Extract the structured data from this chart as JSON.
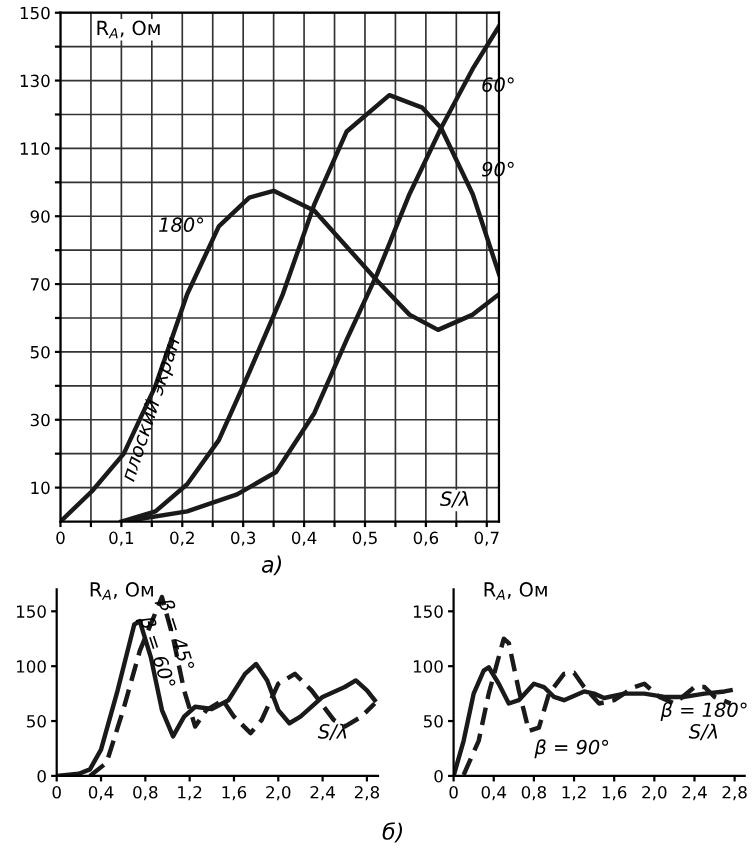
{
  "chart_data": [
    {
      "type": "line",
      "xlabel": "S/λ",
      "ylabel": "R$_{A}$, Ом",
      "xlim": [
        0,
        0.72
      ],
      "ylim": [
        0,
        150
      ],
      "xticks": [
        0,
        {
          "value": 0.05,
          "label": null
        },
        {
          "value": 0.1,
          "label": "0,1"
        },
        {
          "value": 0.15,
          "label": null
        },
        {
          "value": 0.2,
          "label": "0,2"
        },
        {
          "value": 0.25,
          "label": null
        },
        {
          "value": 0.3,
          "label": "0,3"
        },
        {
          "value": 0.35,
          "label": null
        },
        {
          "value": 0.4,
          "label": "0,4"
        },
        {
          "value": 0.45,
          "label": null
        },
        {
          "value": 0.5,
          "label": "0,5"
        },
        {
          "value": 0.55,
          "label": null
        },
        {
          "value": 0.6,
          "label": "0,6"
        },
        {
          "value": 0.65,
          "label": null
        },
        {
          "value": 0.7,
          "label": "0,7"
        }
      ],
      "yticks": [
        10,
        {
          "value": 20,
          "label": null
        },
        30,
        {
          "value": 40,
          "label": null
        },
        50,
        {
          "value": 60,
          "label": null
        },
        70,
        {
          "value": 80,
          "label": null
        },
        90,
        {
          "value": 100,
          "label": null
        },
        110,
        {
          "value": 120,
          "label": null
        },
        130,
        {
          "value": 140,
          "label": null
        },
        150
      ],
      "grid": true,
      "line_style": "solid",
      "series": [
        {
          "color": "#1a1a1a",
          "x": [
            0,
            0.052,
            0.104,
            0.156,
            0.208,
            0.26,
            0.31,
            0.35,
            0.417,
            0.47,
            0.52,
            0.573,
            0.62,
            0.677,
            0.72
          ],
          "values": [
            0,
            9,
            20,
            40,
            67,
            87,
            95.5,
            97.5,
            91.6,
            81,
            71,
            61,
            56.5,
            61,
            67
          ]
        },
        {
          "color": "#1a1a1a",
          "x": [
            0.1,
            0.156,
            0.208,
            0.26,
            0.31,
            0.365,
            0.417,
            0.47,
            0.54,
            0.594,
            0.625,
            0.677,
            0.72
          ],
          "values": [
            0,
            3,
            11,
            24,
            44,
            67,
            93.6,
            115,
            125.7,
            122,
            116,
            96.5,
            73
          ]
        },
        {
          "color": "#1a1a1a",
          "x": [
            0.104,
            0.208,
            0.29,
            0.354,
            0.417,
            0.47,
            0.52,
            0.573,
            0.625,
            0.677,
            0.72
          ],
          "values": [
            0,
            3,
            8,
            14.6,
            32,
            53.6,
            73,
            96.5,
            116,
            133.5,
            146
          ]
        }
      ],
      "annotations": [
        {
          "text": "плоский экран",
          "x": 0.15,
          "y": 33
        },
        {
          "text": "180°",
          "x": 0.26,
          "y": 87
        },
        {
          "text": "90°",
          "x": 0.677,
          "y": 96.5
        },
        {
          "text": "60°",
          "x": 0.677,
          "y": 133.5
        },
        "а)"
      ]
    },
    {
      "type": "line",
      "xlabel": "S/λ",
      "ylabel": "R$_{A}$, Ом",
      "xlim": [
        0,
        2.9
      ],
      "ylim": [
        0,
        170
      ],
      "xticks": [
        0,
        {
          "value": 0.4,
          "label": "0,4"
        },
        {
          "value": 0.8,
          "label": "0,8"
        },
        {
          "value": 1.2,
          "label": "1,2"
        },
        {
          "value": 1.6,
          "label": "1,6"
        },
        {
          "value": 2.0,
          "label": "2,0"
        },
        {
          "value": 2.4,
          "label": "2,4"
        },
        {
          "value": 2.8,
          "label": "2,8"
        }
      ],
      "yticks": [
        0,
        50,
        100,
        150
      ],
      "series": [
        {
          "color": "#1a1a1a",
          "line_style": "solid",
          "x": [
            0,
            0.2,
            0.3,
            0.4,
            0.55,
            0.7,
            0.75,
            0.85,
            0.95,
            1.05,
            1.15,
            1.25,
            1.4,
            1.55,
            1.7,
            1.8,
            1.9,
            2.0,
            2.1,
            2.2,
            2.4,
            2.6,
            2.7,
            2.8,
            2.87
          ],
          "values": [
            0,
            2,
            6,
            24,
            78,
            138,
            141,
            108,
            60,
            36,
            54,
            63,
            61,
            69,
            93,
            102,
            87,
            60,
            48,
            54,
            72,
            81,
            87,
            78,
            69
          ]
        },
        {
          "color": "#1a1a1a",
          "line_style": "dashed",
          "x": [
            0.3,
            0.45,
            0.6,
            0.75,
            0.95,
            1.05,
            1.15,
            1.25,
            1.35,
            1.5,
            1.6,
            1.75,
            1.85,
            2.0,
            2.15,
            2.3,
            2.5,
            2.6,
            2.75,
            2.87
          ],
          "values": [
            0,
            12,
            60,
            114,
            163,
            126,
            78,
            45,
            60,
            69,
            54,
            39,
            51,
            84,
            93,
            78,
            51,
            45,
            54,
            66
          ]
        }
      ],
      "annotations": [
        {
          "text": "β = 45°",
          "x": 1.07,
          "y": 128
        },
        {
          "text": "β = 60°",
          "x": 0.9,
          "y": 112
        }
      ]
    },
    {
      "type": "line",
      "xlabel": "S/λ",
      "ylabel": "R$_{A}$, Ом",
      "xlim": [
        0,
        2.9
      ],
      "ylim": [
        0,
        170
      ],
      "xticks": [
        0,
        {
          "value": 0.4,
          "label": "0,4"
        },
        {
          "value": 0.8,
          "label": "0,8"
        },
        {
          "value": 1.2,
          "label": "1,2"
        },
        {
          "value": 1.6,
          "label": "1,6"
        },
        {
          "value": 2.0,
          "label": "2,0"
        },
        {
          "value": 2.4,
          "label": "2,4"
        },
        {
          "value": 2.8,
          "label": "2,8"
        }
      ],
      "yticks": [
        0,
        50,
        100,
        150
      ],
      "series": [
        {
          "color": "#1a1a1a",
          "line_style": "solid",
          "x": [
            0,
            0.1,
            0.2,
            0.3,
            0.35,
            0.45,
            0.55,
            0.65,
            0.8,
            0.9,
            1.0,
            1.1,
            1.3,
            1.4,
            1.5,
            1.7,
            1.9,
            2.1,
            2.3,
            2.5,
            2.7,
            2.76
          ],
          "values": [
            0,
            32,
            75,
            96,
            99,
            84,
            66,
            69,
            84,
            81,
            72,
            69,
            77,
            75,
            71,
            75,
            75,
            72,
            72,
            75,
            77,
            78
          ]
        },
        {
          "color": "#1a1a1a",
          "line_style": "dashed",
          "x": [
            0.1,
            0.25,
            0.35,
            0.5,
            0.55,
            0.65,
            0.75,
            0.85,
            0.95,
            1.1,
            1.2,
            1.3,
            1.45,
            1.6,
            1.8,
            1.9,
            2.05,
            2.2,
            2.4,
            2.5,
            2.6,
            2.76
          ],
          "values": [
            1,
            32,
            75,
            125,
            121,
            78,
            41,
            44,
            75,
            93,
            94,
            81,
            66,
            69,
            81,
            84,
            72,
            66,
            81,
            81,
            72,
            66
          ]
        }
      ],
      "annotations": [
        {
          "text": "β = 180°",
          "x": 2.5,
          "y": 75
        },
        {
          "text": "β = 90°",
          "x": 0.75,
          "y": 41
        },
        "б)"
      ]
    }
  ]
}
